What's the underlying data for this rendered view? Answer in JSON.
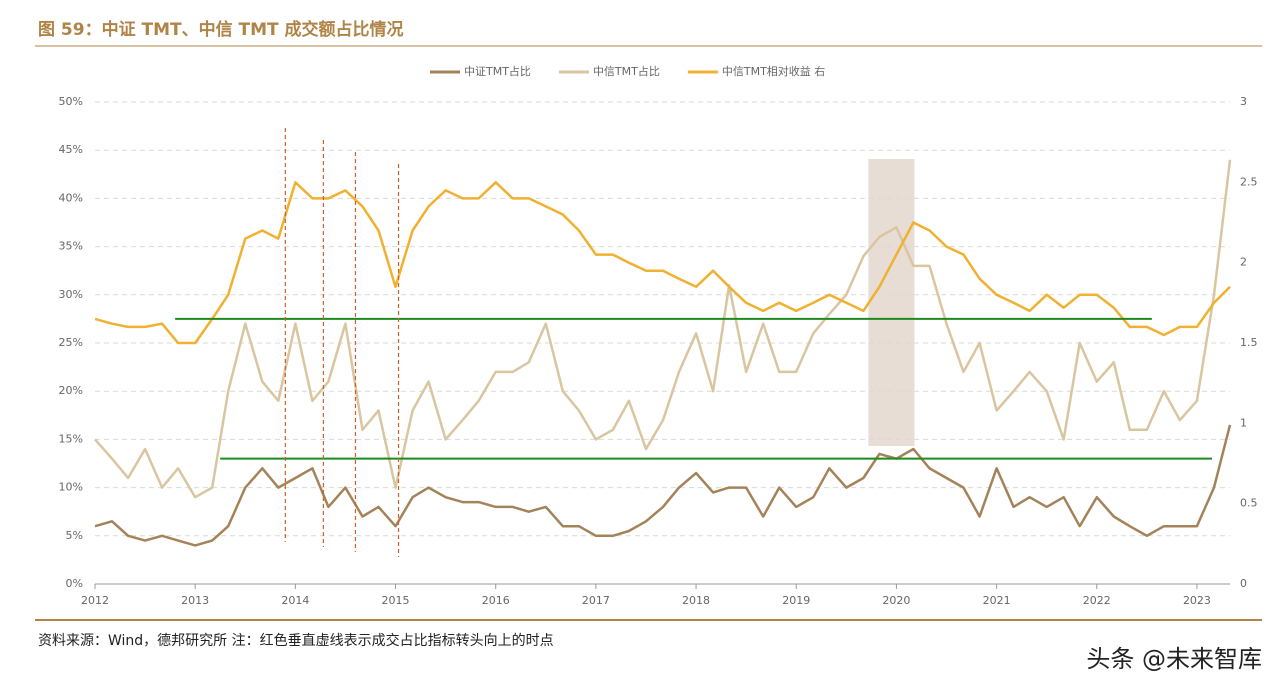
{
  "chart_data": {
    "type": "line",
    "title": "图 59：中证 TMT、中信 TMT 成交额占比情况",
    "source": "资料来源：Wind，德邦研究所   注：红色垂直虚线表示成交占比指标转头向上的时点",
    "watermark": "头条 @未来智库",
    "x": [
      2012,
      2012.17,
      2012.33,
      2012.5,
      2012.67,
      2012.83,
      2013,
      2013.17,
      2013.33,
      2013.5,
      2013.67,
      2013.83,
      2014,
      2014.17,
      2014.33,
      2014.5,
      2014.67,
      2014.83,
      2015,
      2015.17,
      2015.33,
      2015.5,
      2015.67,
      2015.83,
      2016,
      2016.17,
      2016.33,
      2016.5,
      2016.67,
      2016.83,
      2017,
      2017.17,
      2017.33,
      2017.5,
      2017.67,
      2017.83,
      2018,
      2018.17,
      2018.33,
      2018.5,
      2018.67,
      2018.83,
      2019,
      2019.17,
      2019.33,
      2019.5,
      2019.67,
      2019.83,
      2020,
      2020.17,
      2020.33,
      2020.5,
      2020.67,
      2020.83,
      2021,
      2021.17,
      2021.33,
      2021.5,
      2021.67,
      2021.83,
      2022,
      2022.17,
      2022.33,
      2022.5,
      2022.67,
      2022.83,
      2023,
      2023.17,
      2023.33
    ],
    "xlim": [
      2012,
      2023.33
    ],
    "xticks": [
      2012,
      2013,
      2014,
      2015,
      2016,
      2017,
      2018,
      2019,
      2020,
      2021,
      2022,
      2023
    ],
    "ylim": [
      0,
      50
    ],
    "yticks": [
      {
        "value": 0,
        "label": "0%"
      },
      {
        "value": 5,
        "label": "5%"
      },
      {
        "value": 10,
        "label": "10%"
      },
      {
        "value": 15,
        "label": "15%"
      },
      {
        "value": 20,
        "label": "20%"
      },
      {
        "value": 25,
        "label": "25%"
      },
      {
        "value": 30,
        "label": "30%"
      },
      {
        "value": 35,
        "label": "35%"
      },
      {
        "value": 40,
        "label": "40%"
      },
      {
        "value": 45,
        "label": "45%"
      },
      {
        "value": 50,
        "label": "50%"
      }
    ],
    "y2lim": [
      0,
      3
    ],
    "y2ticks": [
      0,
      0.5,
      1,
      1.5,
      2,
      2.5,
      3
    ],
    "grid": true,
    "legend": "top",
    "series": [
      {
        "name": "中证TMT占比",
        "color": "#a5835a",
        "values": [
          6,
          6.5,
          5,
          4.5,
          5,
          4.5,
          4,
          4.5,
          6,
          10,
          12,
          10,
          11,
          12,
          8,
          10,
          7,
          8,
          6,
          9,
          10,
          9,
          8.5,
          8.5,
          8,
          8,
          7.5,
          8,
          6,
          6,
          5,
          5,
          5.5,
          6.5,
          8,
          10,
          11.5,
          9.5,
          10,
          10,
          7,
          10,
          8,
          9,
          12,
          10,
          11,
          13.5,
          13,
          14,
          12,
          11,
          10,
          7,
          12,
          8,
          9,
          8,
          9,
          6,
          9,
          7,
          6,
          5,
          6,
          6,
          6,
          10,
          16.5
        ]
      },
      {
        "name": "中信TMT占比",
        "color": "#d9c5a0",
        "values": [
          15,
          13,
          11,
          14,
          10,
          12,
          9,
          10,
          20,
          27,
          21,
          19,
          27,
          19,
          21,
          27,
          16,
          18,
          10,
          18,
          21,
          15,
          17,
          19,
          22,
          22,
          23,
          27,
          20,
          18,
          15,
          16,
          19,
          14,
          17,
          22,
          26,
          20,
          31,
          22,
          27,
          22,
          22,
          26,
          28,
          30,
          34,
          36,
          37,
          33,
          33,
          27,
          22,
          25,
          18,
          20,
          22,
          20,
          15,
          25,
          21,
          23,
          16,
          16,
          20,
          17,
          19,
          30,
          44
        ]
      },
      {
        "name": "中信TMT相对收益 右",
        "color": "#f0b030",
        "axis": "y2",
        "values": [
          1.65,
          1.62,
          1.6,
          1.6,
          1.62,
          1.5,
          1.5,
          1.65,
          1.8,
          2.15,
          2.2,
          2.15,
          2.5,
          2.4,
          2.4,
          2.45,
          2.35,
          2.2,
          1.85,
          2.2,
          2.35,
          2.45,
          2.4,
          2.4,
          2.5,
          2.4,
          2.4,
          2.35,
          2.3,
          2.2,
          2.05,
          2.05,
          2.0,
          1.95,
          1.95,
          1.9,
          1.85,
          1.95,
          1.85,
          1.75,
          1.7,
          1.75,
          1.7,
          1.75,
          1.8,
          1.75,
          1.7,
          1.85,
          2.05,
          2.25,
          2.2,
          2.1,
          2.05,
          1.9,
          1.8,
          1.75,
          1.7,
          1.8,
          1.72,
          1.8,
          1.8,
          1.72,
          1.6,
          1.6,
          1.55,
          1.6,
          1.6,
          1.75,
          1.85
        ]
      }
    ],
    "reference_lines": [
      {
        "value": 27.5,
        "x": [
          2012.8,
          2022.55
        ],
        "color": "#1e8a1e"
      },
      {
        "value": 13,
        "x": [
          2013.25,
          2023.15
        ],
        "color": "#1e8a1e"
      }
    ],
    "vertical_lines": {
      "color": "#d0602a",
      "x": [
        2013.9,
        2014.28,
        2014.6,
        2015.03
      ]
    },
    "shaded_region": {
      "x": [
        2019.72,
        2020.18
      ],
      "color": "#e8ddd4"
    }
  }
}
